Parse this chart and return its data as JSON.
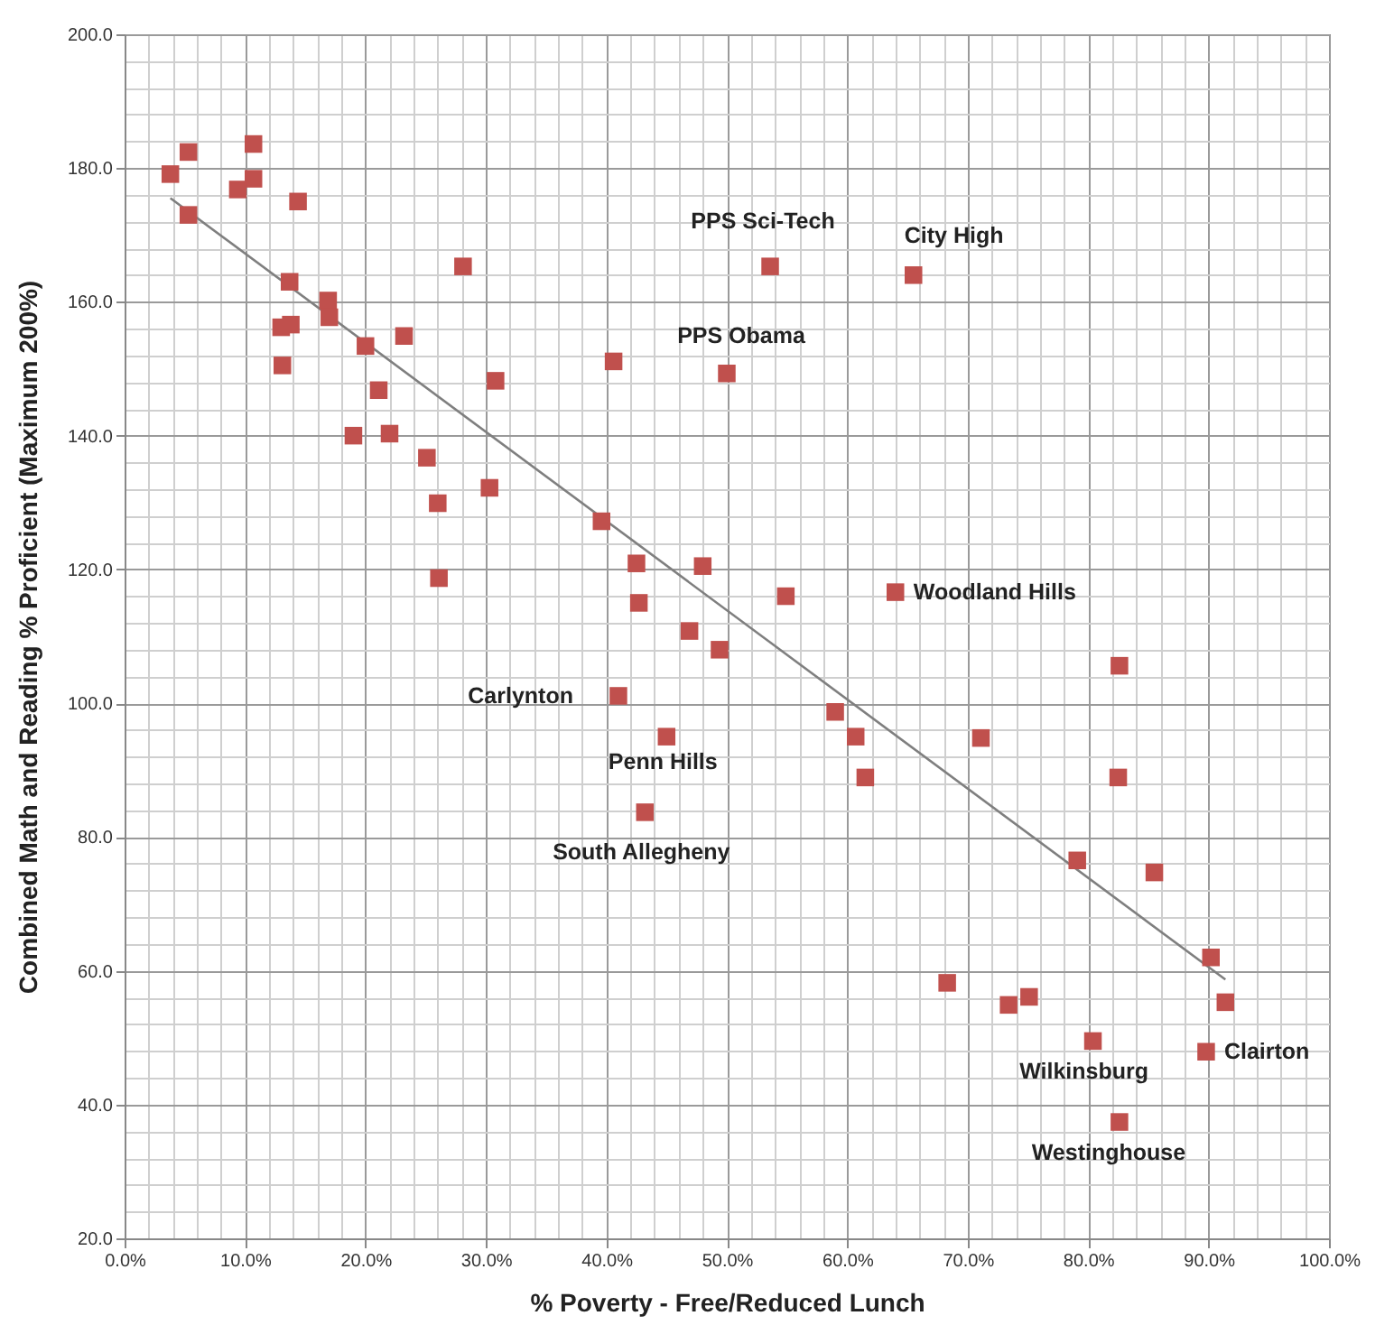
{
  "chart_data": {
    "type": "scatter",
    "xlabel": "% Poverty - Free/Reduced Lunch",
    "ylabel": "Combined Math and Reading % Proficient  (Maximum 200%)",
    "xlim": [
      0,
      100
    ],
    "ylim": [
      20,
      200
    ],
    "xticks": [
      {
        "value": 0,
        "label": "0.0%"
      },
      {
        "value": 2,
        "label": null
      },
      {
        "value": 4,
        "label": null
      },
      {
        "value": 6,
        "label": null
      },
      {
        "value": 8,
        "label": null
      },
      {
        "value": 10,
        "label": "10.0%"
      },
      {
        "value": 12,
        "label": null
      },
      {
        "value": 14,
        "label": null
      },
      {
        "value": 16,
        "label": null
      },
      {
        "value": 18,
        "label": null
      },
      {
        "value": 20,
        "label": "20.0%"
      },
      {
        "value": 22,
        "label": null
      },
      {
        "value": 24,
        "label": null
      },
      {
        "value": 26,
        "label": null
      },
      {
        "value": 28,
        "label": null
      },
      {
        "value": 30,
        "label": "30.0%"
      },
      {
        "value": 32,
        "label": null
      },
      {
        "value": 34,
        "label": null
      },
      {
        "value": 36,
        "label": null
      },
      {
        "value": 38,
        "label": null
      },
      {
        "value": 40,
        "label": "40.0%"
      },
      {
        "value": 42,
        "label": null
      },
      {
        "value": 44,
        "label": null
      },
      {
        "value": 46,
        "label": null
      },
      {
        "value": 48,
        "label": null
      },
      {
        "value": 50,
        "label": "50.0%"
      },
      {
        "value": 52,
        "label": null
      },
      {
        "value": 54,
        "label": null
      },
      {
        "value": 56,
        "label": null
      },
      {
        "value": 58,
        "label": null
      },
      {
        "value": 60,
        "label": "60.0%"
      },
      {
        "value": 62,
        "label": null
      },
      {
        "value": 64,
        "label": null
      },
      {
        "value": 66,
        "label": null
      },
      {
        "value": 68,
        "label": null
      },
      {
        "value": 70,
        "label": "70.0%"
      },
      {
        "value": 72,
        "label": null
      },
      {
        "value": 74,
        "label": null
      },
      {
        "value": 76,
        "label": null
      },
      {
        "value": 78,
        "label": null
      },
      {
        "value": 80,
        "label": "80.0%"
      },
      {
        "value": 82,
        "label": null
      },
      {
        "value": 84,
        "label": null
      },
      {
        "value": 86,
        "label": null
      },
      {
        "value": 88,
        "label": null
      },
      {
        "value": 90,
        "label": "90.0%"
      },
      {
        "value": 92,
        "label": null
      },
      {
        "value": 94,
        "label": null
      },
      {
        "value": 96,
        "label": null
      },
      {
        "value": 98,
        "label": null
      },
      {
        "value": 100,
        "label": "100.0%"
      }
    ],
    "yticks": [
      {
        "value": 20,
        "label": "20.0"
      },
      {
        "value": 24,
        "label": null
      },
      {
        "value": 28,
        "label": null
      },
      {
        "value": 32,
        "label": null
      },
      {
        "value": 36,
        "label": null
      },
      {
        "value": 40,
        "label": "40.0"
      },
      {
        "value": 44,
        "label": null
      },
      {
        "value": 48,
        "label": null
      },
      {
        "value": 52,
        "label": null
      },
      {
        "value": 56,
        "label": null
      },
      {
        "value": 60,
        "label": "60.0"
      },
      {
        "value": 64,
        "label": null
      },
      {
        "value": 68,
        "label": null
      },
      {
        "value": 72,
        "label": null
      },
      {
        "value": 76,
        "label": null
      },
      {
        "value": 80,
        "label": "80.0"
      },
      {
        "value": 84,
        "label": null
      },
      {
        "value": 88,
        "label": null
      },
      {
        "value": 92,
        "label": null
      },
      {
        "value": 96,
        "label": null
      },
      {
        "value": 100,
        "label": "100.0"
      },
      {
        "value": 104,
        "label": null
      },
      {
        "value": 108,
        "label": null
      },
      {
        "value": 112,
        "label": null
      },
      {
        "value": 116,
        "label": null
      },
      {
        "value": 120,
        "label": "120.0"
      },
      {
        "value": 124,
        "label": null
      },
      {
        "value": 128,
        "label": null
      },
      {
        "value": 132,
        "label": null
      },
      {
        "value": 136,
        "label": null
      },
      {
        "value": 140,
        "label": "140.0"
      },
      {
        "value": 144,
        "label": null
      },
      {
        "value": 148,
        "label": null
      },
      {
        "value": 152,
        "label": null
      },
      {
        "value": 156,
        "label": null
      },
      {
        "value": 160,
        "label": "160.0"
      },
      {
        "value": 164,
        "label": null
      },
      {
        "value": 168,
        "label": null
      },
      {
        "value": 172,
        "label": null
      },
      {
        "value": 176,
        "label": null
      },
      {
        "value": 180,
        "label": "180.0"
      },
      {
        "value": 184,
        "label": null
      },
      {
        "value": 188,
        "label": null
      },
      {
        "value": 192,
        "label": null
      },
      {
        "value": 196,
        "label": null
      },
      {
        "value": 200,
        "label": "200.0"
      }
    ],
    "grid": true,
    "series": [
      {
        "type": "scatter",
        "marker": "square",
        "color": "#c0504d",
        "x": [
          3.8,
          5.3,
          10.7,
          10.7,
          9.4,
          14.4,
          5.3,
          28.1,
          13.7,
          16.9,
          17.0,
          13.0,
          13.8,
          20.0,
          23.2,
          13.1,
          30.8,
          21.1,
          19.0,
          22.0,
          25.1,
          30.3,
          26.0,
          26.1,
          53.6,
          65.5,
          40.6,
          50.0,
          39.6,
          42.5,
          48.0,
          42.7,
          54.9,
          64.0,
          46.9,
          49.4,
          41.0,
          59.0,
          60.7,
          45.0,
          71.1,
          61.5,
          43.2,
          82.6,
          82.5,
          79.1,
          85.5,
          90.2,
          68.3,
          73.4,
          75.1,
          91.4,
          80.4,
          89.8,
          82.6
        ],
        "values": [
          179.1,
          182.4,
          183.6,
          178.4,
          176.8,
          175.0,
          173.0,
          165.3,
          163.0,
          160.2,
          157.7,
          156.2,
          156.6,
          153.4,
          154.9,
          150.5,
          148.2,
          146.8,
          140.0,
          140.3,
          136.7,
          132.2,
          129.9,
          118.7,
          165.3,
          164.0,
          151.1,
          149.3,
          127.2,
          120.9,
          120.5,
          115.0,
          116.0,
          116.6,
          110.8,
          108.0,
          101.1,
          98.7,
          95.0,
          95.0,
          94.8,
          88.9,
          83.7,
          105.6,
          88.9,
          76.5,
          74.7,
          62.0,
          58.2,
          54.9,
          56.1,
          55.3,
          49.5,
          47.9,
          37.4
        ]
      },
      {
        "type": "line",
        "color": "#7f7f7f",
        "x": [
          3.8,
          91.4
        ],
        "values": [
          175.5,
          58.7
        ]
      }
    ],
    "annotations": [
      {
        "text": "PPS Sci-Tech",
        "x": 53.6,
        "y": 165.3
      },
      {
        "text": "City High",
        "x": 65.5,
        "y": 164.0
      },
      {
        "text": "PPS Obama",
        "x": 50.0,
        "y": 149.3
      },
      {
        "text": "Woodland Hills",
        "x": 64.0,
        "y": 116.6
      },
      {
        "text": "Carlynton",
        "x": 41.0,
        "y": 101.1
      },
      {
        "text": "Penn Hills",
        "x": 45.0,
        "y": 95.0
      },
      {
        "text": "South Allegheny",
        "x": 43.2,
        "y": 83.7
      },
      {
        "text": "Wilkinsburg",
        "x": 80.4,
        "y": 49.5
      },
      {
        "text": "Clairton",
        "x": 89.8,
        "y": 47.9
      },
      {
        "text": "Westinghouse",
        "x": 82.6,
        "y": 37.4
      }
    ]
  }
}
